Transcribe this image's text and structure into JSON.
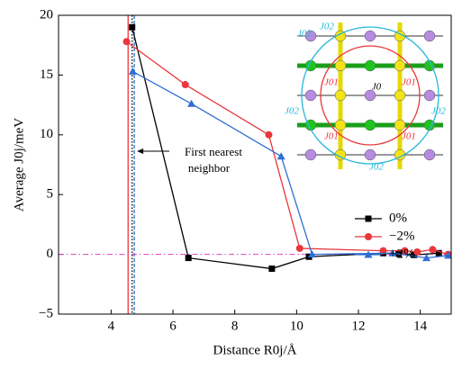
{
  "chart_data": {
    "type": "line",
    "x_label": "Distance R0j/Å",
    "y_label": "Average J0j/meV",
    "xlim": [
      2.3,
      15
    ],
    "xticks": [
      4,
      6,
      8,
      10,
      12,
      14
    ],
    "ylim": [
      -5,
      20
    ],
    "yticks": [
      {
        "value": -5,
        "label": "−5"
      },
      0,
      5,
      10,
      15,
      20
    ],
    "series": [
      {
        "name": "0%",
        "color": "#000000",
        "marker": "square",
        "x": [
          4.68,
          6.5,
          9.2,
          10.4,
          12.8,
          13.3,
          13.8,
          14.6
        ],
        "values": [
          19,
          -0.3,
          -1.2,
          -0.2,
          0.1,
          0.05,
          -0.05,
          0.1
        ]
      },
      {
        "name": "−2%",
        "color": "#e8383d",
        "marker": "circle",
        "x": [
          4.5,
          6.4,
          9.1,
          10.1,
          12.8,
          13.5,
          13.9,
          14.4,
          14.9
        ],
        "values": [
          17.8,
          14.2,
          10,
          0.5,
          0.3,
          0.3,
          0.2,
          0.4,
          0
        ]
      },
      {
        "name": "+2%",
        "color": "#2f6fd6",
        "marker": "triangle",
        "x": [
          4.7,
          6.6,
          9.5,
          10.5,
          13.1,
          14.2,
          14.9
        ],
        "values": [
          15.3,
          12.6,
          8.2,
          0,
          0.1,
          -0.3,
          -0.1
        ]
      }
    ],
    "vlines": [
      {
        "value": 4.55,
        "color": "#e8383d",
        "style": "solid"
      },
      {
        "value": 4.68,
        "color": "#000000",
        "style": "dotted"
      },
      {
        "value": 4.75,
        "color": "#2f6fd6",
        "style": "dashed"
      }
    ],
    "hline": {
      "value": 0,
      "color": "#e040c8",
      "style": "dashdot"
    },
    "annotation": {
      "lines": [
        "First nearest",
        "neighbor"
      ]
    },
    "inset": {
      "labels": [
        "J02",
        "J02",
        "J01",
        "J01",
        "J0",
        "J02",
        "J02",
        "J01",
        "J01",
        "J02"
      ]
    }
  }
}
